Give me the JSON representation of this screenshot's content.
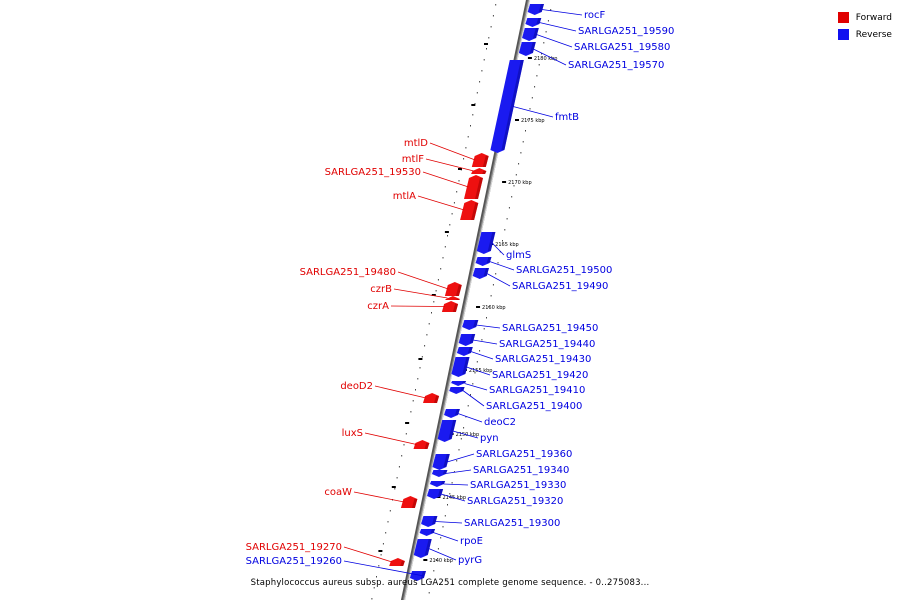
{
  "legend": [
    {
      "label": "Forward",
      "color": "#e00000"
    },
    {
      "label": "Reverse",
      "color": "#1010f0"
    }
  ],
  "caption": "Staphylococcus aureus subsp. aureus LGA251 complete genome sequence. - 0..275083...",
  "colors": {
    "forward": "#ee1010",
    "reverse": "#1a1af0",
    "backbone": "#8a8a8a"
  },
  "ticks": [
    "2140 kbp",
    "2145 kbp",
    "2150 kbp",
    "2155 kbp",
    "2160 kbp",
    "2165 kbp",
    "2170 kbp",
    "2175 kbp",
    "2180 kbp"
  ],
  "genes": [
    {
      "name": "rocF",
      "strand": "reverse"
    },
    {
      "name": "SARLGA251_19590",
      "strand": "reverse"
    },
    {
      "name": "SARLGA251_19580",
      "strand": "reverse"
    },
    {
      "name": "SARLGA251_19570",
      "strand": "reverse"
    },
    {
      "name": "fmtB",
      "strand": "reverse"
    },
    {
      "name": "mtlD",
      "strand": "forward"
    },
    {
      "name": "mtlF",
      "strand": "forward"
    },
    {
      "name": "SARLGA251_19530",
      "strand": "forward"
    },
    {
      "name": "mtlA",
      "strand": "forward"
    },
    {
      "name": "glmS",
      "strand": "reverse"
    },
    {
      "name": "SARLGA251_19500",
      "strand": "reverse"
    },
    {
      "name": "SARLGA251_19490",
      "strand": "reverse"
    },
    {
      "name": "SARLGA251_19480",
      "strand": "forward"
    },
    {
      "name": "czrB",
      "strand": "forward"
    },
    {
      "name": "czrA",
      "strand": "forward"
    },
    {
      "name": "SARLGA251_19450",
      "strand": "reverse"
    },
    {
      "name": "SARLGA251_19440",
      "strand": "reverse"
    },
    {
      "name": "SARLGA251_19430",
      "strand": "reverse"
    },
    {
      "name": "SARLGA251_19420",
      "strand": "reverse"
    },
    {
      "name": "SARLGA251_19410",
      "strand": "reverse"
    },
    {
      "name": "SARLGA251_19400",
      "strand": "reverse"
    },
    {
      "name": "deoC2",
      "strand": "reverse"
    },
    {
      "name": "deoD2",
      "strand": "forward"
    },
    {
      "name": "pyn",
      "strand": "reverse"
    },
    {
      "name": "luxS",
      "strand": "forward"
    },
    {
      "name": "SARLGA251_19360",
      "strand": "reverse"
    },
    {
      "name": "SARLGA251_19340",
      "strand": "reverse"
    },
    {
      "name": "SARLGA251_19330",
      "strand": "reverse"
    },
    {
      "name": "SARLGA251_19320",
      "strand": "reverse"
    },
    {
      "name": "coaW",
      "strand": "forward"
    },
    {
      "name": "SARLGA251_19300",
      "strand": "reverse"
    },
    {
      "name": "rpoE",
      "strand": "reverse"
    },
    {
      "name": "SARLGA251_19270",
      "strand": "forward"
    },
    {
      "name": "pyrG",
      "strand": "reverse"
    },
    {
      "name": "SARLGA251_19260",
      "strand": "reverse"
    }
  ]
}
